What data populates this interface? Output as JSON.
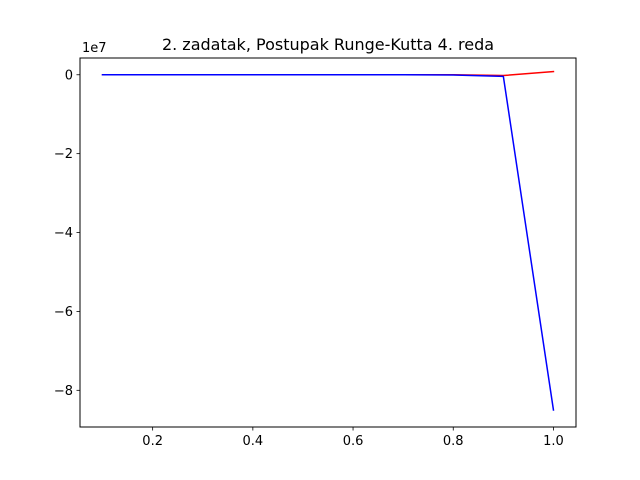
{
  "chart_data": {
    "type": "line",
    "title": "2. zadatak, Postupak Runge-Kutta 4. reda",
    "xlabel": "",
    "ylabel": "",
    "y_offset_label": "1e7",
    "xlim": [
      0.055,
      1.045
    ],
    "ylim": [
      -8.93,
      0.425
    ],
    "x_ticks": [
      0.2,
      0.4,
      0.6,
      0.8,
      1.0
    ],
    "x_tick_labels": [
      "0.2",
      "0.4",
      "0.6",
      "0.8",
      "1.0"
    ],
    "y_ticks": [
      0,
      -2,
      -4,
      -6,
      -8
    ],
    "y_tick_labels": [
      "0",
      "−2",
      "−4",
      "−6",
      "−8"
    ],
    "grid": false,
    "x": [
      0.1,
      0.2,
      0.3,
      0.4,
      0.5,
      0.6,
      0.7,
      0.8,
      0.9,
      1.0
    ],
    "series": [
      {
        "color": "#ff0000",
        "values": [
          0,
          0,
          0,
          0,
          0,
          0,
          0,
          0,
          -0.02,
          0.08
        ]
      },
      {
        "color": "#0000ff",
        "values": [
          0,
          0,
          0,
          0,
          0,
          0,
          0,
          -0.005,
          -0.04,
          -8.5
        ]
      }
    ]
  }
}
